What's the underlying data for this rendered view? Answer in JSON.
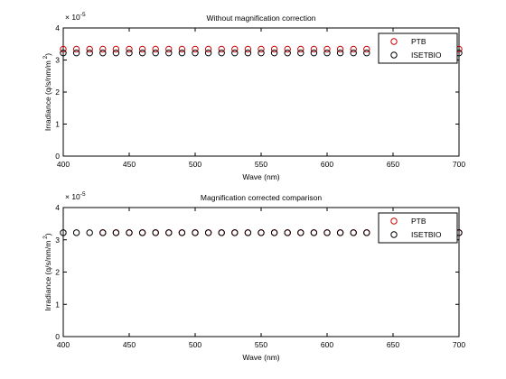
{
  "chart_data": [
    {
      "type": "scatter",
      "title": "Without magnification correction",
      "xlabel": "Wave (nm)",
      "ylabel": "Irradiance (q/s/nm/m",
      "ylabel_superscript": "2",
      "ylabel_close": ")",
      "xlim": [
        400,
        700
      ],
      "ylim": [
        0,
        4
      ],
      "xticks": [
        "400",
        "450",
        "500",
        "550",
        "600",
        "650",
        "700"
      ],
      "yticks": [
        "0",
        "1",
        "2",
        "3",
        "4"
      ],
      "exponent_base": "× 10",
      "exponent_power": "-5",
      "legend_position": "top-right",
      "grid": false,
      "series": [
        {
          "name": "PTB",
          "color": "#cc0000",
          "marker": "circle",
          "x": [
            400,
            410,
            420,
            430,
            440,
            450,
            460,
            470,
            480,
            490,
            500,
            510,
            520,
            530,
            540,
            550,
            560,
            570,
            580,
            590,
            600,
            610,
            620,
            630,
            700
          ],
          "y": [
            3.34,
            3.34,
            3.34,
            3.34,
            3.34,
            3.34,
            3.34,
            3.34,
            3.34,
            3.34,
            3.34,
            3.34,
            3.34,
            3.34,
            3.34,
            3.34,
            3.34,
            3.34,
            3.34,
            3.34,
            3.34,
            3.34,
            3.34,
            3.34,
            3.34
          ]
        },
        {
          "name": "ISETBIO",
          "color": "#000000",
          "marker": "circle",
          "x": [
            400,
            410,
            420,
            430,
            440,
            450,
            460,
            470,
            480,
            490,
            500,
            510,
            520,
            530,
            540,
            550,
            560,
            570,
            580,
            590,
            600,
            610,
            620,
            630,
            700
          ],
          "y": [
            3.22,
            3.22,
            3.22,
            3.22,
            3.22,
            3.22,
            3.22,
            3.22,
            3.22,
            3.22,
            3.22,
            3.22,
            3.22,
            3.22,
            3.22,
            3.22,
            3.22,
            3.22,
            3.22,
            3.22,
            3.22,
            3.22,
            3.22,
            3.22,
            3.22
          ]
        }
      ]
    },
    {
      "type": "scatter",
      "title": "Magnification corrected comparison",
      "xlabel": "Wave (nm)",
      "ylabel": "Irradiance (q/s/nm/m",
      "ylabel_superscript": "2",
      "ylabel_close": ")",
      "xlim": [
        400,
        700
      ],
      "ylim": [
        0,
        4
      ],
      "xticks": [
        "400",
        "450",
        "500",
        "550",
        "600",
        "650",
        "700"
      ],
      "yticks": [
        "0",
        "1",
        "2",
        "3",
        "4"
      ],
      "exponent_base": "× 10",
      "exponent_power": "-5",
      "legend_position": "top-right",
      "grid": false,
      "series": [
        {
          "name": "PTB",
          "color": "#cc0000",
          "marker": "circle",
          "x": [
            430,
            440,
            450,
            460,
            470,
            480,
            490,
            500,
            510,
            520,
            530,
            540,
            550,
            560,
            570,
            580,
            590,
            600,
            610,
            620,
            630,
            700
          ],
          "y": [
            3.22,
            3.22,
            3.22,
            3.22,
            3.22,
            3.22,
            3.22,
            3.22,
            3.22,
            3.22,
            3.22,
            3.22,
            3.22,
            3.22,
            3.22,
            3.22,
            3.22,
            3.22,
            3.22,
            3.22,
            3.22,
            3.22
          ]
        },
        {
          "name": "ISETBIO",
          "color": "#000000",
          "marker": "circle",
          "x": [
            400,
            410,
            420,
            430,
            440,
            450,
            460,
            470,
            480,
            490,
            500,
            510,
            520,
            530,
            540,
            550,
            560,
            570,
            580,
            590,
            600,
            610,
            620,
            630,
            700
          ],
          "y": [
            3.22,
            3.22,
            3.22,
            3.22,
            3.22,
            3.22,
            3.22,
            3.22,
            3.22,
            3.22,
            3.22,
            3.22,
            3.22,
            3.22,
            3.22,
            3.22,
            3.22,
            3.22,
            3.22,
            3.22,
            3.22,
            3.22,
            3.22,
            3.22,
            3.22
          ]
        }
      ]
    }
  ]
}
